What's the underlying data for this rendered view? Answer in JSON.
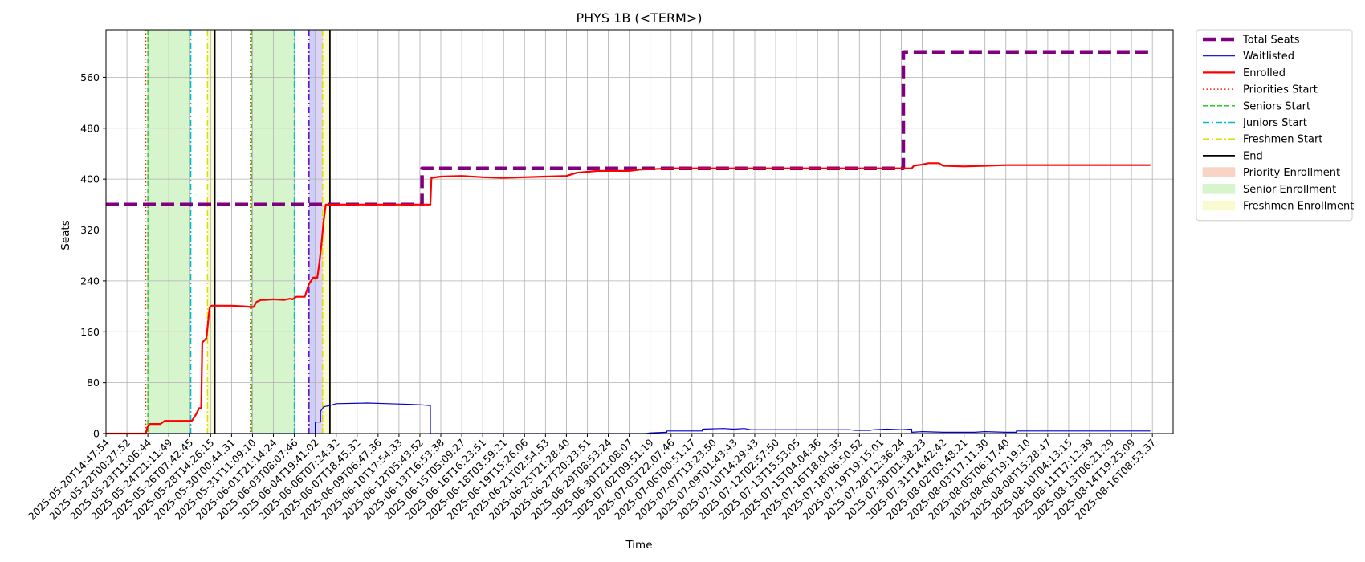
{
  "chart_data": {
    "type": "line",
    "title": "PHYS 1B (<TERM>)",
    "xlabel": "Time",
    "ylabel": "Seats",
    "ylim": [
      0,
      635
    ],
    "yticks": [
      0,
      80,
      160,
      240,
      320,
      400,
      480,
      560
    ],
    "grid": true,
    "legend_position": "outside-top-right",
    "x_tick_labels": [
      "2025-05-20T14:47:54",
      "2025-05-22T00:27:52",
      "2025-05-23T11:06:44",
      "2025-05-24T21:11:49",
      "2025-05-26T07:42:45",
      "2025-05-28T14:26:15",
      "2025-05-30T00:44:31",
      "2025-05-31T11:09:10",
      "2025-06-01T21:14:24",
      "2025-06-03T08:07:46",
      "2025-06-04T19:41:02",
      "2025-06-06T07:24:32",
      "2025-06-07T18:45:32",
      "2025-06-09T06:47:36",
      "2025-06-10T17:54:33",
      "2025-06-12T05:43:52",
      "2025-06-13T16:53:38",
      "2025-06-15T05:09:27",
      "2025-06-16T16:23:51",
      "2025-06-18T03:59:21",
      "2025-06-19T15:26:06",
      "2025-06-21T02:54:53",
      "2025-06-25T21:28:40",
      "2025-06-27T20:23:51",
      "2025-06-29T08:53:24",
      "2025-06-30T21:08:07",
      "2025-07-02T09:51:19",
      "2025-07-03T22:07:46",
      "2025-07-06T00:51:17",
      "2025-07-07T13:23:50",
      "2025-07-09T01:43:43",
      "2025-07-10T14:29:43",
      "2025-07-12T02:57:50",
      "2025-07-13T15:53:05",
      "2025-07-15T04:04:36",
      "2025-07-16T18:04:35",
      "2025-07-18T06:50:52",
      "2025-07-19T19:15:01",
      "2025-07-28T12:36:24",
      "2025-07-30T01:38:23",
      "2025-07-31T14:42:42",
      "2025-08-02T03:48:21",
      "2025-08-03T17:11:30",
      "2025-08-05T06:17:40",
      "2025-08-06T19:19:10",
      "2025-08-08T15:28:47",
      "2025-08-10T04:13:15",
      "2025-08-11T17:12:39",
      "2025-08-13T06:21:29",
      "2025-08-14T19:25:09",
      "2025-08-16T08:53:37"
    ],
    "x_index_range": [
      0,
      49.9
    ],
    "series": [
      {
        "name": "Total Seats",
        "color": "#800080",
        "style": "dashed-thick",
        "points": [
          [
            0,
            360
          ],
          [
            15.1,
            360
          ],
          [
            15.1,
            417
          ],
          [
            38.1,
            417
          ],
          [
            38.1,
            600
          ],
          [
            49.9,
            600
          ]
        ]
      },
      {
        "name": "Waitlisted",
        "color": "#0000cc",
        "style": "solid-thin",
        "points": [
          [
            0,
            0
          ],
          [
            10.0,
            0
          ],
          [
            10.0,
            18
          ],
          [
            10.25,
            18
          ],
          [
            10.25,
            35
          ],
          [
            10.4,
            42
          ],
          [
            10.7,
            44
          ],
          [
            11.0,
            47
          ],
          [
            12.5,
            48
          ],
          [
            13.5,
            47
          ],
          [
            14.5,
            46
          ],
          [
            15.1,
            45
          ],
          [
            15.5,
            44
          ],
          [
            15.5,
            0
          ],
          [
            25.8,
            0
          ],
          [
            26.0,
            1
          ],
          [
            26.8,
            2
          ],
          [
            26.8,
            4
          ],
          [
            28.5,
            4
          ],
          [
            28.5,
            7
          ],
          [
            29.5,
            8
          ],
          [
            30.0,
            7
          ],
          [
            30.5,
            8
          ],
          [
            30.8,
            6
          ],
          [
            35.5,
            6
          ],
          [
            35.8,
            5
          ],
          [
            36.5,
            5
          ],
          [
            36.7,
            6
          ],
          [
            37.3,
            7
          ],
          [
            38.0,
            6
          ],
          [
            38.5,
            7
          ],
          [
            38.5,
            2
          ],
          [
            39.0,
            3
          ],
          [
            40.0,
            2
          ],
          [
            41.5,
            2
          ],
          [
            42.0,
            3
          ],
          [
            43.0,
            2
          ],
          [
            43.5,
            2
          ],
          [
            43.5,
            4
          ],
          [
            49.9,
            4
          ]
        ]
      },
      {
        "name": "Enrolled",
        "color": "#ff0000",
        "style": "solid-thick",
        "points": [
          [
            0,
            0
          ],
          [
            1.9,
            0
          ],
          [
            2.0,
            12
          ],
          [
            2.1,
            15
          ],
          [
            2.6,
            15
          ],
          [
            2.8,
            20
          ],
          [
            4.1,
            20
          ],
          [
            4.3,
            30
          ],
          [
            4.45,
            40
          ],
          [
            4.55,
            40
          ],
          [
            4.6,
            143
          ],
          [
            4.8,
            150
          ],
          [
            4.95,
            198
          ],
          [
            5.05,
            201
          ],
          [
            6.0,
            201
          ],
          [
            6.6,
            200
          ],
          [
            6.95,
            199
          ],
          [
            7.05,
            199
          ],
          [
            7.2,
            207
          ],
          [
            7.4,
            210
          ],
          [
            7.6,
            210
          ],
          [
            8.0,
            211
          ],
          [
            8.5,
            210
          ],
          [
            8.8,
            212
          ],
          [
            8.9,
            211
          ],
          [
            9.1,
            215
          ],
          [
            9.5,
            215
          ],
          [
            9.7,
            235
          ],
          [
            9.9,
            245
          ],
          [
            10.1,
            245
          ],
          [
            10.2,
            270
          ],
          [
            10.3,
            300
          ],
          [
            10.4,
            335
          ],
          [
            10.5,
            360
          ],
          [
            15.5,
            360
          ],
          [
            15.55,
            402
          ],
          [
            16.0,
            404
          ],
          [
            17.0,
            405
          ],
          [
            18.0,
            403
          ],
          [
            19.0,
            402
          ],
          [
            20.0,
            403
          ],
          [
            21.0,
            404
          ],
          [
            22.0,
            405
          ],
          [
            22.5,
            410
          ],
          [
            23.5,
            413
          ],
          [
            25.0,
            413
          ],
          [
            25.5,
            415
          ],
          [
            27.0,
            417
          ],
          [
            38.5,
            417
          ],
          [
            38.6,
            421
          ],
          [
            39.0,
            423
          ],
          [
            39.3,
            425
          ],
          [
            39.8,
            425
          ],
          [
            40.0,
            421
          ],
          [
            41.0,
            420
          ],
          [
            42.0,
            421
          ],
          [
            43.0,
            422
          ],
          [
            49.9,
            422
          ]
        ]
      }
    ],
    "markers": [
      {
        "name": "Priorities Start",
        "color": "#ff2200",
        "style": "dotted",
        "x": [
          1.9,
          6.9
        ]
      },
      {
        "name": "Seniors Start",
        "color": "#22cc22",
        "style": "dashed",
        "x": [
          2.0,
          6.95
        ]
      },
      {
        "name": "Juniors Start",
        "color": "#00bbcc",
        "style": "dashdot",
        "x": [
          4.05,
          9.0
        ]
      },
      {
        "name": "Freshmen Start",
        "color": "#dddd00",
        "style": "dashdot",
        "x": [
          4.85,
          10.35
        ]
      },
      {
        "name": "End",
        "color": "#000000",
        "style": "solid",
        "x": [
          5.2,
          10.7
        ]
      }
    ],
    "extra_lines": [
      {
        "color": "#6600cc",
        "style": "dashdot",
        "x": 9.7
      }
    ],
    "spans": [
      {
        "name": "Priority Enrollment",
        "color": "#f9d3c3",
        "ranges": []
      },
      {
        "name": "Senior Enrollment",
        "color": "#d6f5cc",
        "ranges": [
          [
            2.0,
            4.05
          ],
          [
            6.95,
            9.0
          ]
        ]
      },
      {
        "name": "Freshmen Enrollment",
        "color": "#fafad2",
        "ranges": [
          [
            4.85,
            5.2
          ],
          [
            10.35,
            10.7
          ]
        ]
      }
    ],
    "extra_spans": [
      {
        "color": "#ccd0f7",
        "range": [
          9.7,
          10.0
        ]
      },
      {
        "color": "#dcd3f7",
        "range": [
          10.0,
          10.35
        ]
      }
    ],
    "legend": [
      {
        "label": "Total Seats",
        "kind": "line",
        "color": "#800080",
        "style": "dashed-thick"
      },
      {
        "label": "Waitlisted",
        "kind": "line",
        "color": "#0000cc",
        "style": "solid-thin"
      },
      {
        "label": "Enrolled",
        "kind": "line",
        "color": "#ff0000",
        "style": "solid-thick"
      },
      {
        "label": "Priorities Start",
        "kind": "line",
        "color": "#ff2200",
        "style": "dotted"
      },
      {
        "label": "Seniors Start",
        "kind": "line",
        "color": "#22cc22",
        "style": "dashed"
      },
      {
        "label": "Juniors Start",
        "kind": "line",
        "color": "#00bbcc",
        "style": "dashdot"
      },
      {
        "label": "Freshmen Start",
        "kind": "line",
        "color": "#dddd00",
        "style": "dashdot"
      },
      {
        "label": "End",
        "kind": "line",
        "color": "#000000",
        "style": "solid"
      },
      {
        "label": "Priority Enrollment",
        "kind": "patch",
        "color": "#f9d3c3"
      },
      {
        "label": "Senior Enrollment",
        "kind": "patch",
        "color": "#d6f5cc"
      },
      {
        "label": "Freshmen Enrollment",
        "kind": "patch",
        "color": "#fafad2"
      }
    ]
  }
}
